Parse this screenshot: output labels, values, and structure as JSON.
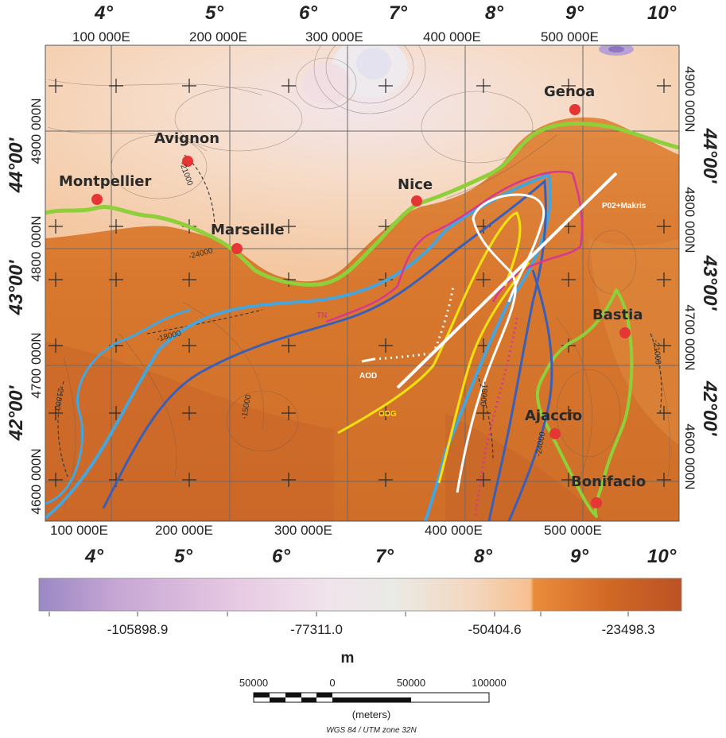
{
  "top_degrees": [
    "4°",
    "5°",
    "6°",
    "7°",
    "8°",
    "9°",
    "10°"
  ],
  "bottom_degrees": [
    "4°",
    "5°",
    "6°",
    "7°",
    "8°",
    "9°",
    "10°"
  ],
  "top_utm": [
    "100 000E",
    "200 000E",
    "300 000E",
    "400 000E",
    "500 000E"
  ],
  "bottom_utm": [
    "100 000E",
    "200 000E",
    "300 000E",
    "400 000E",
    "500 000E"
  ],
  "left_degrees": [
    "44°00'",
    "43°00'",
    "42°00'"
  ],
  "right_degrees": [
    "44°00'",
    "43°00'",
    "42°00'"
  ],
  "left_utm": [
    "4900 000N",
    "4800 000N",
    "4700 000N",
    "4600 000N"
  ],
  "right_utm": [
    "4900 000N",
    "4800 000N",
    "4700 000N",
    "4600 000N"
  ],
  "cities": [
    "Genoa",
    "Avignon",
    "Montpellier",
    "Nice",
    "Marseille",
    "Bastia",
    "Ajaccio",
    "Bonifacio"
  ],
  "line_labels": {
    "p02": "P02+Makris",
    "tn": "TN",
    "aod": "AOD",
    "odg": "ODG"
  },
  "contour_labels": [
    "-21000",
    "-24000",
    "-18000",
    "-21000",
    "-15000",
    "-18000",
    "-24000",
    "-21000"
  ],
  "colorbar": {
    "ticks": [
      "-105898.9",
      "-77311.0",
      "-50404.6",
      "-23498.3"
    ],
    "unit": "m",
    "stops": [
      "#9a88c4",
      "#c6a6d4",
      "#e6c8e2",
      "#f1e4ec",
      "#eaeae6",
      "#f4d6bc",
      "#f6bf8e",
      "#ea8c3c",
      "#d26a26",
      "#bb5224"
    ]
  },
  "scalebar": {
    "numbers": [
      "50000",
      "0",
      "50000",
      "100000"
    ],
    "unit": "(meters)"
  },
  "projection": "WGS 84 / UTM zone 32N",
  "colors": {
    "coastline": "#8ecf3a",
    "cyan_line": "#45a5dc",
    "blue_line": "#3a5fb8",
    "magenta_line": "#d8388e",
    "yellow_line": "#f4e20e",
    "white_line": "#ffffff",
    "city_marker": "#e53535"
  }
}
